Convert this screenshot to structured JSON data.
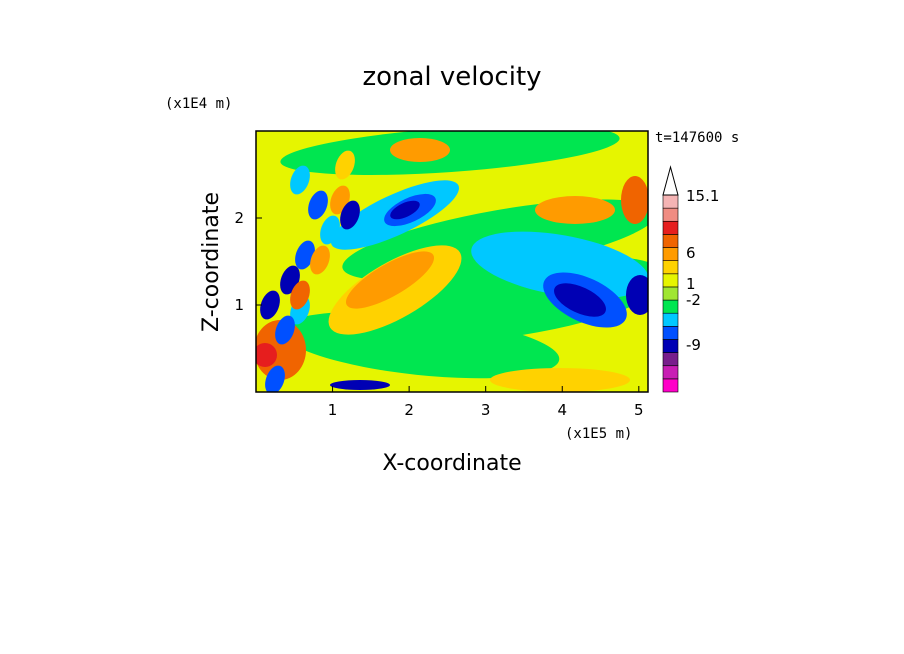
{
  "chart_data": {
    "type": "heatmap",
    "title": "zonal velocity",
    "xlabel": "X-coordinate",
    "ylabel": "Z-coordinate",
    "x_unit": "(x1E5 m)",
    "y_unit": "(x1E4 m)",
    "time_label": "t=147600 s",
    "xlim": [
      0,
      5.12
    ],
    "ylim": [
      0,
      3.0
    ],
    "x_ticks": [
      "1",
      "2",
      "3",
      "4",
      "5"
    ],
    "y_ticks": [
      "1",
      "2"
    ],
    "colorbar": {
      "labels": [
        "15.1",
        "6",
        "1",
        "-2",
        "-9"
      ],
      "colors": [
        "#ff00c8",
        "#c81eb4",
        "#781e8c",
        "#0000b4",
        "#0050ff",
        "#00c8ff",
        "#00e650",
        "#a0e632",
        "#e6f500",
        "#ffd200",
        "#ff9b00",
        "#f06400",
        "#e61e1e",
        "#f08c82",
        "#f5b4b4"
      ],
      "extend_max": true
    },
    "field_palette": {
      "strong_neg": "#0000b4",
      "neg": "#0050ff",
      "weak_neg": "#00c8ff",
      "near_zero": "#00e650",
      "weak_pos": "#e6f500",
      "pos": "#ffd200",
      "strong_pos": "#ff9b00",
      "very_strong_pos": "#f06400",
      "extreme_pos": "#e61e1e",
      "extreme_neg": "#781e8c"
    },
    "grid": false,
    "legend_position": "right"
  }
}
